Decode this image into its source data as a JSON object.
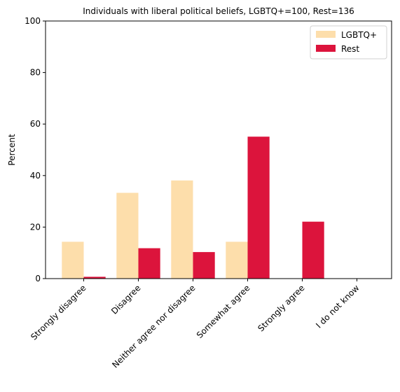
{
  "chart_data": {
    "type": "bar",
    "title": "Individuals with liberal political beliefs, LGBTQ+=100, Rest=136",
    "xlabel": "",
    "ylabel": "Percent",
    "ylim": [
      0,
      100
    ],
    "yticks": [
      0,
      20,
      40,
      60,
      80,
      100
    ],
    "categories": [
      "Strongly disagree",
      "Disagree",
      "Neither agree nor disagree",
      "Somewhat agree",
      "Strongly agree",
      "I do not know"
    ],
    "series": [
      {
        "name": "LGBTQ+",
        "color": "#FDDEAB",
        "values": [
          14.3,
          33.3,
          38.1,
          14.3,
          0,
          0
        ]
      },
      {
        "name": "Rest",
        "color": "#DC143C",
        "values": [
          0.7,
          11.8,
          10.3,
          55.1,
          22.1,
          0
        ]
      }
    ],
    "legend_position": "top-right",
    "grid": false
  }
}
